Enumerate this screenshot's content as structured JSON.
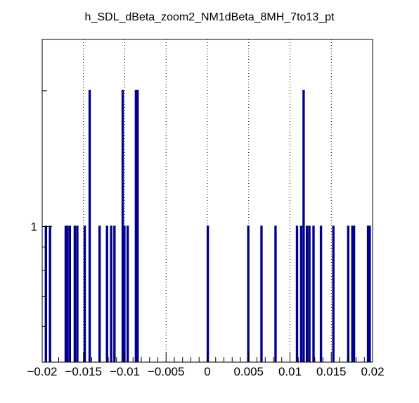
{
  "chart_data": {
    "type": "bar",
    "style": "histogram",
    "title": "h_SDL_dBeta_zoom2_NM1dBeta_8MH_7to13_pt",
    "xlabel": "",
    "ylabel": "",
    "xlim": [
      -0.02,
      0.02
    ],
    "ylim": [
      0.5,
      2.6
    ],
    "yscale": "log",
    "grid": "vertical dotted",
    "line_color": "#00008b",
    "x_ticks": [
      -0.02,
      -0.015,
      -0.01,
      -0.005,
      0,
      0.005,
      0.01,
      0.015,
      0.02
    ],
    "x_tick_labels": [
      "−0.02",
      "−0.015",
      "−0.01",
      "−0.005",
      "0",
      "0.005",
      "0.01",
      "0.015",
      "0.02"
    ],
    "y_tick_labels": [
      "1"
    ],
    "bins": [
      {
        "x": -0.0196,
        "value": 1
      },
      {
        "x": -0.0191,
        "value": 1
      },
      {
        "x": -0.0172,
        "value": 1
      },
      {
        "x": -0.017,
        "value": 1
      },
      {
        "x": -0.0167,
        "value": 1
      },
      {
        "x": -0.0161,
        "value": 1
      },
      {
        "x": -0.0158,
        "value": 1
      },
      {
        "x": -0.0149,
        "value": 1
      },
      {
        "x": -0.0143,
        "value": 2
      },
      {
        "x": -0.0131,
        "value": 1
      },
      {
        "x": -0.0122,
        "value": 1
      },
      {
        "x": -0.0117,
        "value": 1
      },
      {
        "x": -0.0113,
        "value": 1
      },
      {
        "x": -0.0103,
        "value": 2
      },
      {
        "x": -0.0101,
        "value": 1
      },
      {
        "x": -0.0097,
        "value": 1
      },
      {
        "x": -0.0087,
        "value": 2
      },
      {
        "x": -0.0085,
        "value": 2
      },
      {
        "x": 0.0,
        "value": 1
      },
      {
        "x": 0.0049,
        "value": 1
      },
      {
        "x": 0.0065,
        "value": 1
      },
      {
        "x": 0.0082,
        "value": 1
      },
      {
        "x": 0.0108,
        "value": 1
      },
      {
        "x": 0.0113,
        "value": 1
      },
      {
        "x": 0.0116,
        "value": 2
      },
      {
        "x": 0.012,
        "value": 1
      },
      {
        "x": 0.0123,
        "value": 1
      },
      {
        "x": 0.0128,
        "value": 1
      },
      {
        "x": 0.0137,
        "value": 1
      },
      {
        "x": 0.0152,
        "value": 1
      },
      {
        "x": 0.017,
        "value": 1
      },
      {
        "x": 0.0175,
        "value": 1
      },
      {
        "x": 0.0177,
        "value": 1
      },
      {
        "x": 0.0194,
        "value": 1
      },
      {
        "x": 0.0196,
        "value": 1
      }
    ]
  }
}
